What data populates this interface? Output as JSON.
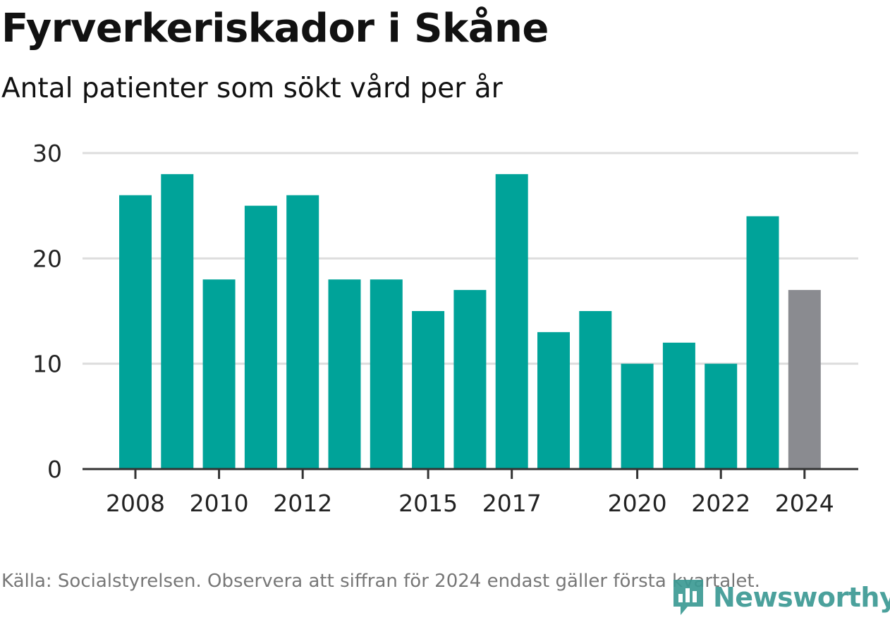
{
  "title": "Fyrverkeriskador i Skåne",
  "subtitle": "Antal patienter som sökt vård per år",
  "source": "Källa: Socialstyrelsen. Observera att siffran för 2024 endast gäller första kvartalet.",
  "logo_text": "Newsworthy",
  "colors": {
    "bar": "#00a399",
    "bar_partial": "#8a8b90",
    "grid": "#dddddd",
    "axis": "#333333",
    "text": "#222222",
    "logo": "#3c9a94"
  },
  "chart_data": {
    "type": "bar",
    "categories": [
      "2008",
      "2009",
      "2010",
      "2011",
      "2012",
      "2013",
      "2014",
      "2015",
      "2016",
      "2017",
      "2018",
      "2019",
      "2020",
      "2021",
      "2022",
      "2023",
      "2024"
    ],
    "values": [
      26,
      28,
      18,
      25,
      26,
      18,
      18,
      15,
      17,
      28,
      13,
      15,
      10,
      12,
      10,
      24,
      17
    ],
    "highlight": {
      "category": "2024",
      "color": "gray"
    },
    "tick_labels_x": [
      "2008",
      "2010",
      "2012",
      "2015",
      "2017",
      "2020",
      "2022",
      "2024"
    ],
    "yticks": [
      0,
      10,
      20,
      30
    ],
    "ylim": [
      0,
      30
    ],
    "grid": true,
    "xlabel": "",
    "ylabel": ""
  }
}
